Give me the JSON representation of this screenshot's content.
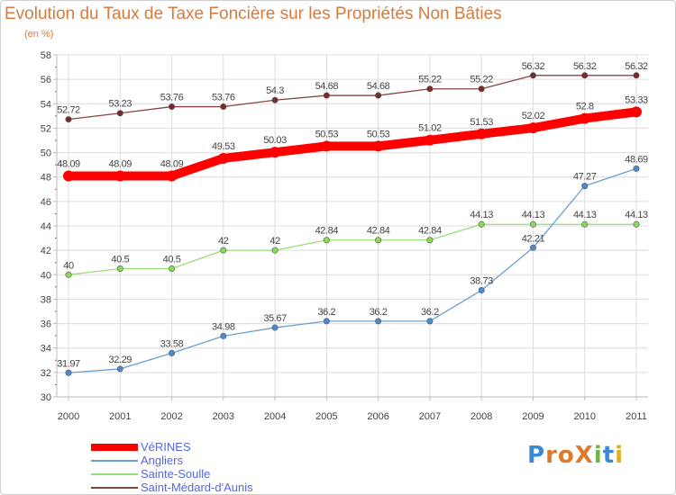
{
  "header": {
    "title": "Evolution du Taux de Taxe Foncière sur les Propriétés Non Bâties",
    "unit": "(en %)"
  },
  "logo": {
    "text": "ProXiti",
    "letters": [
      "P",
      "r",
      "o",
      "X",
      "i",
      "t",
      "i"
    ],
    "colors": [
      "#3a8ad6",
      "#e07a2a",
      "#e07a2a",
      "#e07a2a",
      "#6bbb3a",
      "#3a8ad6",
      "#e0b020"
    ]
  },
  "chart_data": {
    "type": "line",
    "title": "Evolution du Taux de Taxe Foncière sur les Propriétés Non Bâties",
    "ylabel": "(en %)",
    "xlabel": "",
    "categories": [
      "2000",
      "2001",
      "2002",
      "2003",
      "2004",
      "2005",
      "2006",
      "2007",
      "2008",
      "2009",
      "2010",
      "2011"
    ],
    "ylim": [
      30,
      58
    ],
    "yticks": [
      30,
      32,
      34,
      36,
      38,
      40,
      42,
      44,
      46,
      48,
      50,
      52,
      54,
      56,
      58
    ],
    "grid": true,
    "legend_position": "bottom-left",
    "series": [
      {
        "name": "VéRINES",
        "color": "#ff0000",
        "values": [
          48.09,
          48.09,
          48.09,
          49.53,
          50.03,
          50.53,
          50.53,
          51.02,
          51.53,
          52.02,
          52.8,
          53.33
        ],
        "labels": [
          "48.09",
          "48.09",
          "48.09",
          "49.53",
          "50.03",
          "50.53",
          "50.53",
          "51.02",
          "51.53",
          "52.02",
          "52.8",
          "53.33"
        ]
      },
      {
        "name": "Angliers",
        "color": "#6a9fd0",
        "values": [
          31.97,
          32.29,
          33.58,
          34.98,
          35.67,
          36.2,
          36.2,
          36.2,
          38.73,
          42.21,
          47.27,
          48.69
        ],
        "labels": [
          "31.97",
          "32.29",
          "33.58",
          "34.98",
          "35.67",
          "36.2",
          "36.2",
          "36.2",
          "38.73",
          "42.21",
          "47.27",
          "48.69"
        ]
      },
      {
        "name": "Sainte-Soulle",
        "color": "#99dd77",
        "values": [
          40,
          40.5,
          40.5,
          42,
          42,
          42.84,
          42.84,
          42.84,
          44.13,
          44.13,
          44.13,
          44.13
        ],
        "labels": [
          "40",
          "40.5",
          "40.5",
          "42",
          "42",
          "42.84",
          "42.84",
          "42.84",
          "44.13",
          "44.13",
          "44.13",
          "44.13"
        ]
      },
      {
        "name": "Saint-Médard-d'Aunis",
        "color": "#884444",
        "values": [
          52.72,
          53.23,
          53.76,
          53.76,
          54.3,
          54.68,
          54.68,
          55.22,
          55.22,
          56.32,
          56.32,
          56.32
        ],
        "labels": [
          "52.72",
          "53.23",
          "53.76",
          "53.76",
          "54.3",
          "54.68",
          "54.68",
          "55.22",
          "55.22",
          "56.32",
          "56.32",
          "56.32"
        ]
      }
    ]
  }
}
